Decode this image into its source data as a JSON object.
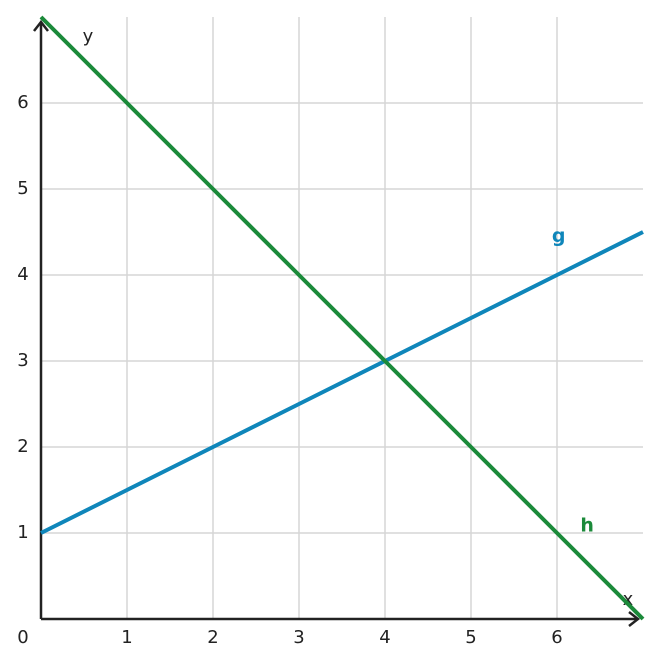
{
  "chart_data": {
    "type": "line",
    "x_label": "x",
    "y_label": "y",
    "x": [
      0,
      1,
      2,
      3,
      4,
      5,
      6,
      7
    ],
    "series": [
      {
        "name": "g",
        "color": "#0f86ba",
        "values": [
          1,
          1.5,
          2,
          2.5,
          3,
          3.5,
          4,
          4.5
        ]
      },
      {
        "name": "h",
        "color": "#1b8a3a",
        "values": [
          7,
          6,
          5,
          4,
          3,
          2,
          1,
          0
        ]
      }
    ],
    "xlim": [
      0,
      7
    ],
    "ylim": [
      0,
      7
    ],
    "xticks": [
      0,
      1,
      2,
      3,
      4,
      5,
      6
    ],
    "yticks": [
      1,
      2,
      3,
      4,
      5,
      6
    ],
    "grid": true
  }
}
